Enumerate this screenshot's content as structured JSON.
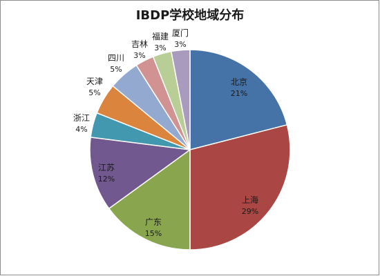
{
  "chart_data": {
    "type": "pie",
    "title": "IBDP学校地域分布",
    "start_angle_deg": 0,
    "direction": "clockwise",
    "slices": [
      {
        "label": "北京",
        "value": 21,
        "value_label": "21%",
        "color": "#4572A7"
      },
      {
        "label": "上海",
        "value": 29,
        "value_label": "29%",
        "color": "#AA4643"
      },
      {
        "label": "广东",
        "value": 15,
        "value_label": "15%",
        "color": "#89A54E"
      },
      {
        "label": "江苏",
        "value": 12,
        "value_label": "12%",
        "color": "#71588F"
      },
      {
        "label": "浙江",
        "value": 4,
        "value_label": "4%",
        "color": "#4198AF"
      },
      {
        "label": "天津",
        "value": 5,
        "value_label": "5%",
        "color": "#DB843D"
      },
      {
        "label": "四川",
        "value": 5,
        "value_label": "5%",
        "color": "#93A9CF"
      },
      {
        "label": "吉林",
        "value": 3,
        "value_label": "3%",
        "color": "#D19392"
      },
      {
        "label": "福建",
        "value": 3,
        "value_label": "3%",
        "color": "#B9CD96"
      },
      {
        "label": "厦门",
        "value": 3,
        "value_label": "3%",
        "color": "#A99BBD"
      }
    ]
  }
}
